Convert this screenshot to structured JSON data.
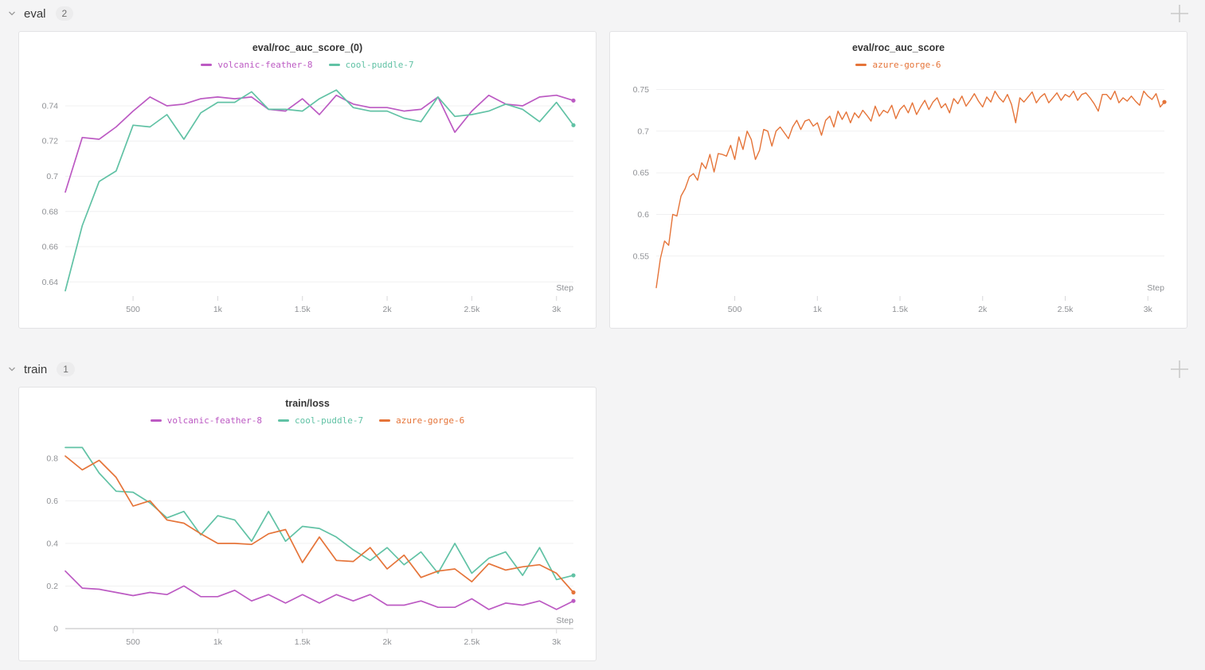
{
  "page": {
    "background": "#f4f4f5",
    "panel_bg": "#ffffff",
    "panel_border": "#e3e3e5"
  },
  "icons": {
    "section_collapse": "chevron-down-icon",
    "add_panel": "plus-icon"
  },
  "sections": [
    {
      "label": "eval",
      "count": "2"
    },
    {
      "label": "train",
      "count": "1"
    }
  ],
  "run_colors": {
    "volcanic-feather-8": "#bc5ac3",
    "cool-puddle-7": "#61c2a5",
    "azure-gorge-6": "#e57439"
  },
  "chart_data": [
    {
      "type": "line",
      "title": "eval/roc_auc_score_(0)",
      "xlabel": "Step",
      "legend_position": "top-center",
      "grid": "horizontal",
      "xlim": [
        100,
        3100
      ],
      "ylim": [
        0.632,
        0.754
      ],
      "x_tick_values": [
        500,
        1000,
        1500,
        2000,
        2500,
        3000
      ],
      "x_tick_labels": [
        "500",
        "1k",
        "1.5k",
        "2k",
        "2.5k",
        "3k"
      ],
      "y_tick_values": [
        0.64,
        0.66,
        0.68,
        0.7,
        0.72,
        0.74
      ],
      "y_tick_labels": [
        "0.64",
        "0.66",
        "0.68",
        "0.7",
        "0.72",
        "0.74"
      ],
      "line_width": 1.7,
      "x": [
        100,
        200,
        300,
        400,
        500,
        600,
        700,
        800,
        900,
        1000,
        1100,
        1200,
        1300,
        1400,
        1500,
        1600,
        1700,
        1800,
        1900,
        2000,
        2100,
        2200,
        2300,
        2400,
        2500,
        2600,
        2700,
        2800,
        2900,
        3000,
        3100
      ],
      "series": [
        {
          "name": "volcanic-feather-8",
          "color": "#bc5ac3",
          "values": [
            0.691,
            0.722,
            0.721,
            0.728,
            0.737,
            0.745,
            0.74,
            0.741,
            0.744,
            0.745,
            0.744,
            0.745,
            0.738,
            0.737,
            0.744,
            0.735,
            0.746,
            0.741,
            0.739,
            0.739,
            0.737,
            0.738,
            0.745,
            0.725,
            0.737,
            0.746,
            0.741,
            0.74,
            0.745,
            0.746,
            0.743
          ]
        },
        {
          "name": "cool-puddle-7",
          "color": "#61c2a5",
          "values": [
            0.635,
            0.672,
            0.697,
            0.703,
            0.729,
            0.728,
            0.735,
            0.721,
            0.736,
            0.742,
            0.742,
            0.748,
            0.738,
            0.738,
            0.737,
            0.744,
            0.749,
            0.739,
            0.737,
            0.737,
            0.733,
            0.731,
            0.745,
            0.734,
            0.735,
            0.737,
            0.741,
            0.738,
            0.731,
            0.742,
            0.729
          ]
        }
      ]
    },
    {
      "type": "line",
      "title": "eval/roc_auc_score",
      "xlabel": "Step",
      "legend_position": "top-center",
      "grid": "horizontal",
      "xlim": [
        25,
        3100
      ],
      "ylim": [
        0.502,
        0.76
      ],
      "x_tick_values": [
        500,
        1000,
        1500,
        2000,
        2500,
        3000
      ],
      "x_tick_labels": [
        "500",
        "1k",
        "1.5k",
        "2k",
        "2.5k",
        "3k"
      ],
      "y_tick_values": [
        0.55,
        0.6,
        0.65,
        0.7,
        0.75
      ],
      "y_tick_labels": [
        "0.55",
        "0.6",
        "0.65",
        "0.7",
        "0.75"
      ],
      "line_width": 1.4,
      "x": [
        25,
        50,
        75,
        100,
        125,
        150,
        175,
        200,
        225,
        250,
        275,
        300,
        325,
        350,
        375,
        400,
        425,
        450,
        475,
        500,
        525,
        550,
        575,
        600,
        625,
        650,
        675,
        700,
        725,
        750,
        775,
        800,
        825,
        850,
        875,
        900,
        925,
        950,
        975,
        1000,
        1025,
        1050,
        1075,
        1100,
        1125,
        1150,
        1175,
        1200,
        1225,
        1250,
        1275,
        1300,
        1325,
        1350,
        1375,
        1400,
        1425,
        1450,
        1475,
        1500,
        1525,
        1550,
        1575,
        1600,
        1625,
        1650,
        1675,
        1700,
        1725,
        1750,
        1775,
        1800,
        1825,
        1850,
        1875,
        1900,
        1925,
        1950,
        1975,
        2000,
        2025,
        2050,
        2075,
        2100,
        2125,
        2150,
        2175,
        2200,
        2225,
        2250,
        2275,
        2300,
        2325,
        2350,
        2375,
        2400,
        2425,
        2450,
        2475,
        2500,
        2525,
        2550,
        2575,
        2600,
        2625,
        2650,
        2675,
        2700,
        2725,
        2750,
        2775,
        2800,
        2825,
        2850,
        2875,
        2900,
        2925,
        2950,
        2975,
        3000,
        3025,
        3050,
        3075,
        3100
      ],
      "series": [
        {
          "name": "azure-gorge-6",
          "color": "#e57439",
          "values": [
            0.512,
            0.547,
            0.568,
            0.563,
            0.6,
            0.598,
            0.622,
            0.631,
            0.645,
            0.649,
            0.641,
            0.662,
            0.655,
            0.672,
            0.651,
            0.673,
            0.672,
            0.67,
            0.683,
            0.666,
            0.693,
            0.678,
            0.7,
            0.69,
            0.666,
            0.677,
            0.702,
            0.7,
            0.682,
            0.7,
            0.705,
            0.698,
            0.691,
            0.705,
            0.713,
            0.702,
            0.712,
            0.714,
            0.706,
            0.71,
            0.695,
            0.713,
            0.718,
            0.705,
            0.724,
            0.714,
            0.723,
            0.71,
            0.722,
            0.716,
            0.725,
            0.719,
            0.712,
            0.73,
            0.718,
            0.725,
            0.722,
            0.731,
            0.715,
            0.726,
            0.731,
            0.722,
            0.734,
            0.72,
            0.729,
            0.737,
            0.726,
            0.735,
            0.74,
            0.728,
            0.733,
            0.722,
            0.739,
            0.733,
            0.742,
            0.73,
            0.737,
            0.745,
            0.736,
            0.729,
            0.741,
            0.735,
            0.748,
            0.74,
            0.735,
            0.744,
            0.732,
            0.71,
            0.74,
            0.735,
            0.741,
            0.747,
            0.734,
            0.741,
            0.745,
            0.734,
            0.74,
            0.746,
            0.737,
            0.744,
            0.741,
            0.748,
            0.737,
            0.744,
            0.746,
            0.74,
            0.733,
            0.724,
            0.744,
            0.744,
            0.738,
            0.748,
            0.734,
            0.74,
            0.736,
            0.742,
            0.736,
            0.731,
            0.748,
            0.742,
            0.738,
            0.745,
            0.729,
            0.735
          ]
        }
      ]
    },
    {
      "type": "line",
      "title": "train/loss",
      "xlabel": "Step",
      "legend_position": "top-center",
      "grid": "horizontal",
      "xlim": [
        100,
        3100
      ],
      "ylim": [
        0,
        0.9
      ],
      "x_tick_values": [
        500,
        1000,
        1500,
        2000,
        2500,
        3000
      ],
      "x_tick_labels": [
        "500",
        "1k",
        "1.5k",
        "2k",
        "2.5k",
        "3k"
      ],
      "y_tick_values": [
        0,
        0.2,
        0.4,
        0.6,
        0.8
      ],
      "y_tick_labels": [
        "0",
        "0.2",
        "0.4",
        "0.6",
        "0.8"
      ],
      "zero_axis_emphasis": true,
      "line_width": 1.7,
      "x": [
        100,
        200,
        300,
        400,
        500,
        600,
        700,
        800,
        900,
        1000,
        1100,
        1200,
        1300,
        1400,
        1500,
        1600,
        1700,
        1800,
        1900,
        2000,
        2100,
        2200,
        2300,
        2400,
        2500,
        2600,
        2700,
        2800,
        2900,
        3000,
        3100
      ],
      "series": [
        {
          "name": "volcanic-feather-8",
          "color": "#bc5ac3",
          "values": [
            0.27,
            0.19,
            0.185,
            0.17,
            0.155,
            0.17,
            0.16,
            0.2,
            0.15,
            0.15,
            0.18,
            0.13,
            0.16,
            0.12,
            0.16,
            0.12,
            0.16,
            0.13,
            0.16,
            0.11,
            0.11,
            0.13,
            0.1,
            0.1,
            0.14,
            0.09,
            0.12,
            0.11,
            0.13,
            0.09,
            0.13
          ]
        },
        {
          "name": "cool-puddle-7",
          "color": "#61c2a5",
          "values": [
            0.85,
            0.85,
            0.73,
            0.645,
            0.64,
            0.59,
            0.52,
            0.55,
            0.44,
            0.53,
            0.51,
            0.41,
            0.55,
            0.41,
            0.48,
            0.47,
            0.43,
            0.37,
            0.32,
            0.38,
            0.3,
            0.36,
            0.26,
            0.4,
            0.26,
            0.33,
            0.36,
            0.25,
            0.38,
            0.23,
            0.25
          ]
        },
        {
          "name": "azure-gorge-6",
          "color": "#e57439",
          "values": [
            0.81,
            0.745,
            0.79,
            0.71,
            0.575,
            0.6,
            0.51,
            0.495,
            0.445,
            0.4,
            0.4,
            0.395,
            0.445,
            0.465,
            0.31,
            0.43,
            0.32,
            0.315,
            0.38,
            0.28,
            0.345,
            0.24,
            0.27,
            0.28,
            0.22,
            0.305,
            0.275,
            0.29,
            0.3,
            0.26,
            0.17
          ]
        }
      ]
    }
  ]
}
